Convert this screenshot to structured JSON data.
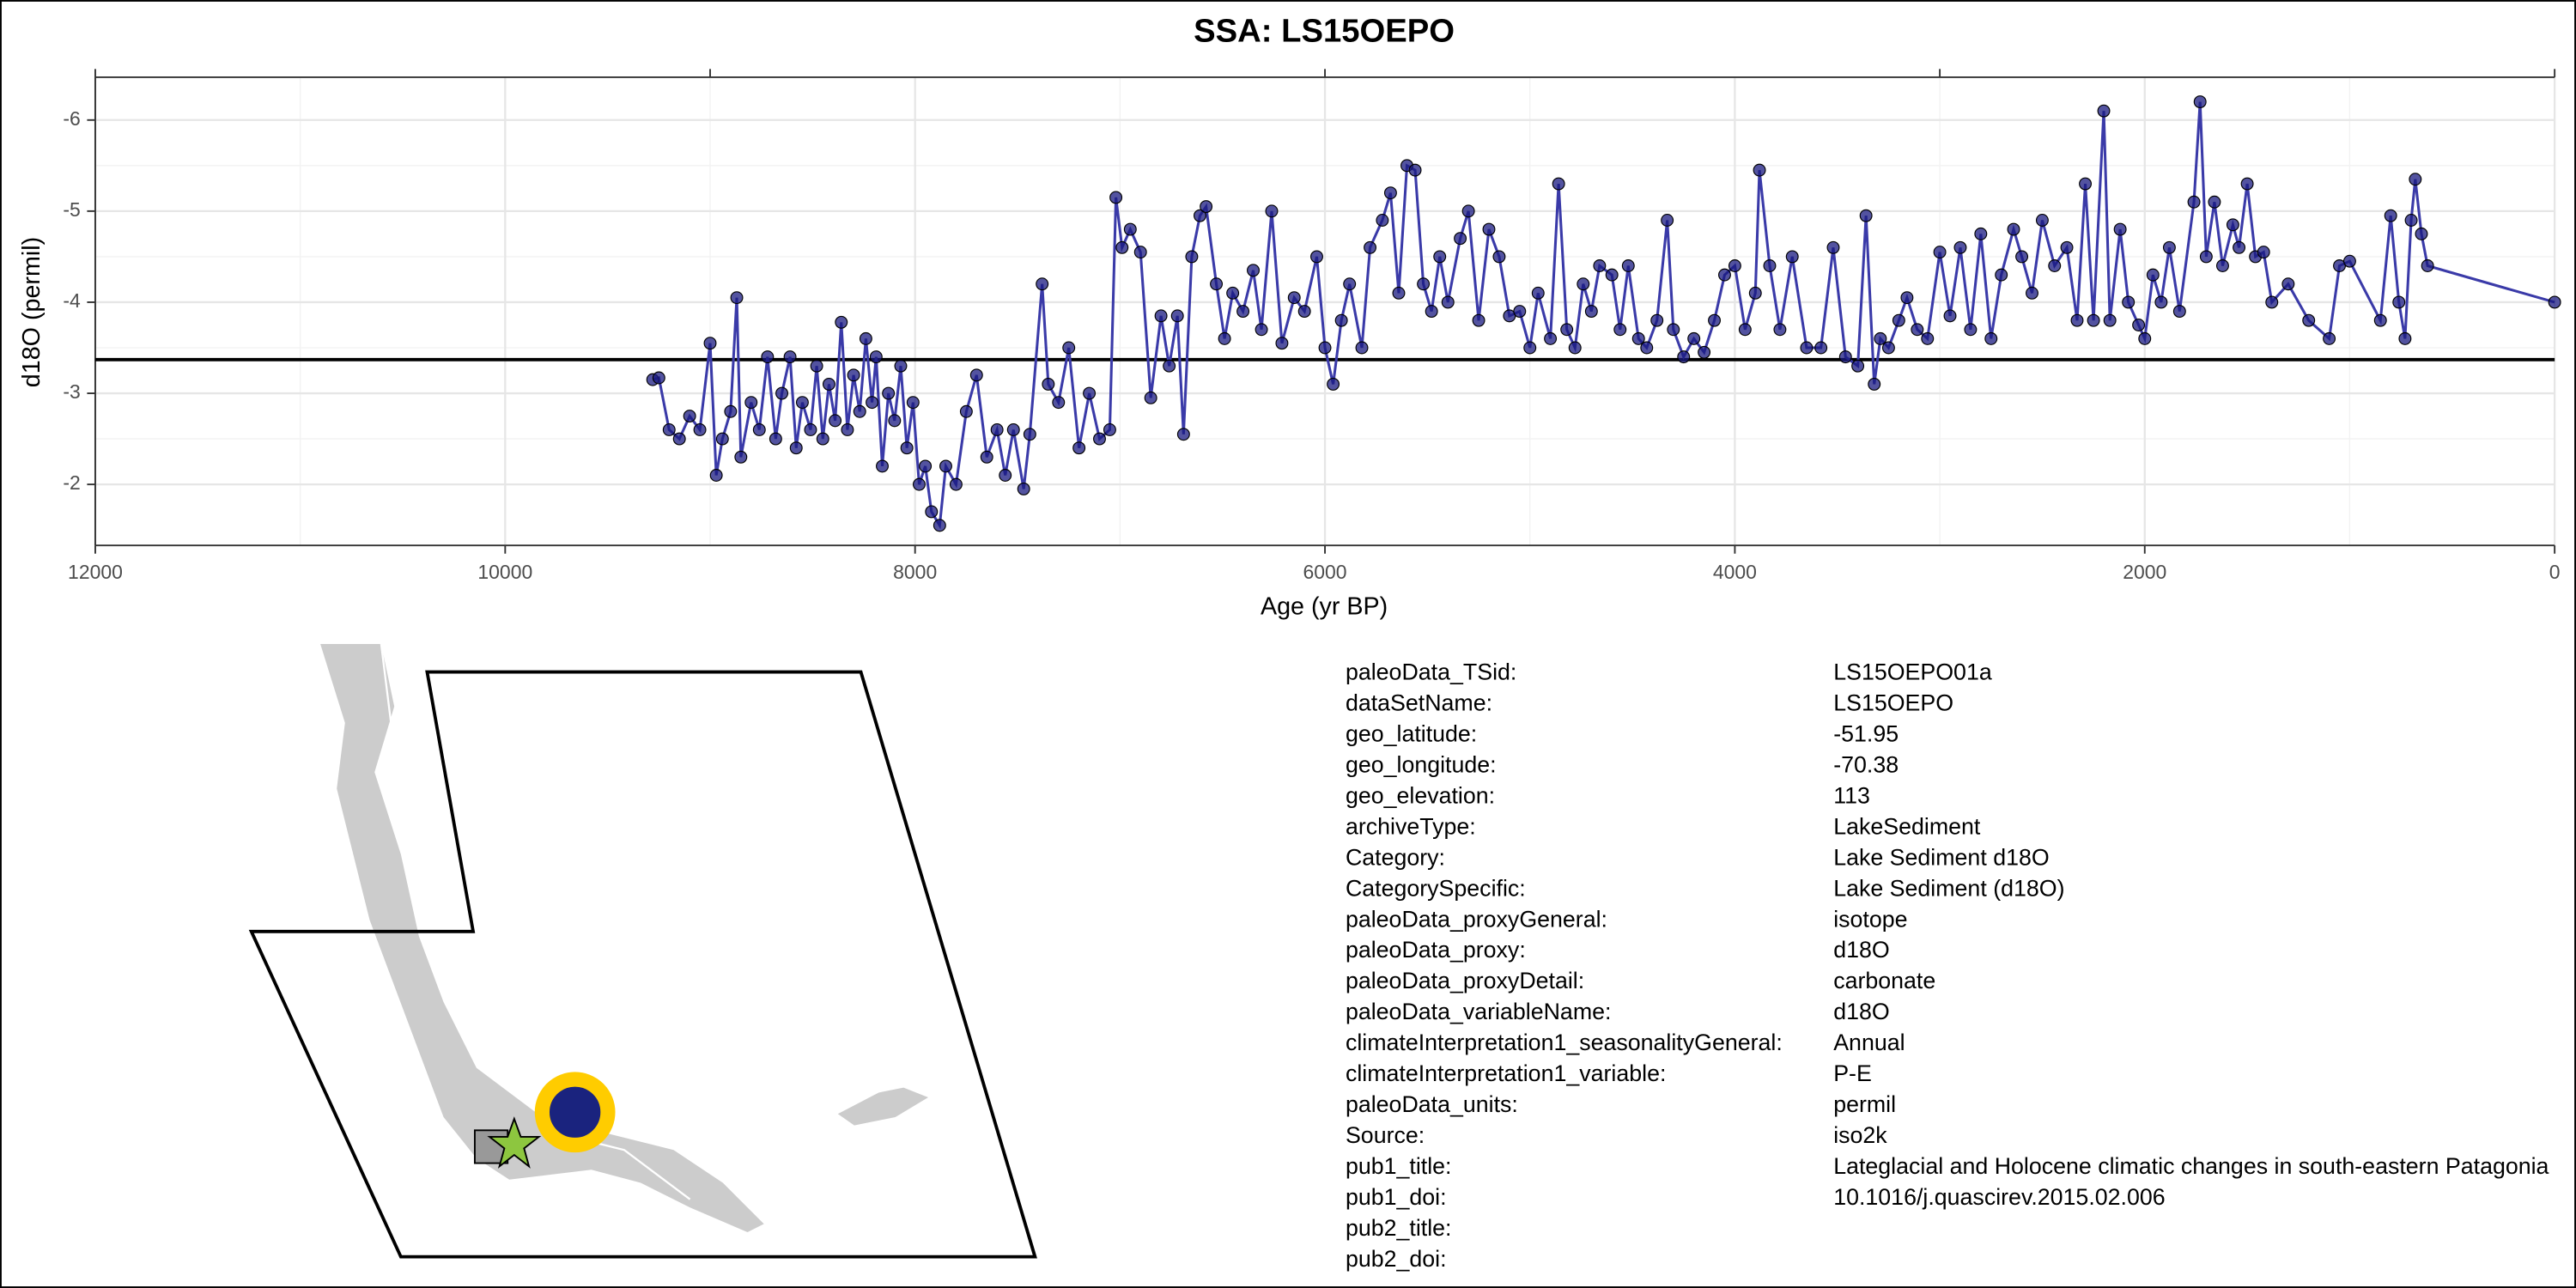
{
  "chart_data": {
    "type": "line",
    "title": "SSA: LS15OEPO",
    "x_label": "Age (yr BP)",
    "y_label": "d18O (permil)",
    "xlim": [
      12000,
      0
    ],
    "ylim": [
      -1.33,
      -6.47
    ],
    "xticks": [
      12000,
      10000,
      8000,
      6000,
      4000,
      2000,
      0
    ],
    "yticks": [
      -6,
      -5,
      -4,
      -3,
      -2
    ],
    "x2ticks": [
      12000,
      9000,
      6000,
      3000,
      0
    ],
    "grid": true,
    "minor_grid": true,
    "hline": -3.37,
    "hline_color": "#000000",
    "x": [
      9280,
      9250,
      9200,
      9150,
      9100,
      9050,
      9000,
      8970,
      8940,
      8900,
      8870,
      8850,
      8800,
      8760,
      8720,
      8680,
      8650,
      8610,
      8580,
      8550,
      8510,
      8480,
      8450,
      8420,
      8390,
      8360,
      8330,
      8300,
      8270,
      8240,
      8210,
      8190,
      8160,
      8130,
      8100,
      8070,
      8040,
      8010,
      7980,
      7950,
      7920,
      7880,
      7850,
      7800,
      7750,
      7700,
      7650,
      7600,
      7560,
      7520,
      7470,
      7440,
      7380,
      7350,
      7300,
      7250,
      7200,
      7150,
      7100,
      7050,
      7020,
      6990,
      6950,
      6900,
      6850,
      6800,
      6760,
      6720,
      6690,
      6650,
      6610,
      6580,
      6530,
      6490,
      6450,
      6400,
      6350,
      6310,
      6260,
      6210,
      6150,
      6100,
      6040,
      6000,
      5960,
      5920,
      5880,
      5820,
      5780,
      5720,
      5680,
      5640,
      5600,
      5560,
      5520,
      5480,
      5440,
      5400,
      5340,
      5300,
      5250,
      5200,
      5150,
      5100,
      5050,
      5000,
      4960,
      4900,
      4860,
      4820,
      4780,
      4740,
      4700,
      4660,
      4600,
      4560,
      4520,
      4470,
      4430,
      4380,
      4330,
      4300,
      4250,
      4200,
      4150,
      4100,
      4050,
      4000,
      3950,
      3900,
      3880,
      3830,
      3780,
      3720,
      3650,
      3580,
      3520,
      3460,
      3400,
      3360,
      3320,
      3290,
      3250,
      3200,
      3160,
      3110,
      3060,
      3000,
      2950,
      2900,
      2850,
      2800,
      2750,
      2700,
      2640,
      2600,
      2550,
      2500,
      2440,
      2380,
      2330,
      2290,
      2250,
      2200,
      2170,
      2120,
      2080,
      2030,
      2000,
      1960,
      1920,
      1880,
      1830,
      1760,
      1730,
      1700,
      1660,
      1620,
      1570,
      1540,
      1500,
      1460,
      1420,
      1380,
      1300,
      1200,
      1100,
      1050,
      1000,
      850,
      800,
      760,
      730,
      700,
      680,
      650,
      620,
      0
    ],
    "series": [
      {
        "color": "#3a3aa8",
        "point_color": "#1a1a80",
        "values": [
          -3.15,
          -3.17,
          -2.6,
          -2.5,
          -2.75,
          -2.6,
          -3.55,
          -2.1,
          -2.5,
          -2.8,
          -4.05,
          -2.3,
          -2.9,
          -2.6,
          -3.4,
          -2.5,
          -3.0,
          -3.4,
          -2.4,
          -2.9,
          -2.6,
          -3.3,
          -2.5,
          -3.1,
          -2.7,
          -3.78,
          -2.6,
          -3.2,
          -2.8,
          -3.6,
          -2.9,
          -3.4,
          -2.2,
          -3.0,
          -2.7,
          -3.3,
          -2.4,
          -2.9,
          -2.0,
          -2.2,
          -1.7,
          -1.55,
          -2.2,
          -2.0,
          -2.8,
          -3.2,
          -2.3,
          -2.6,
          -2.1,
          -2.6,
          -1.95,
          -2.55,
          -4.2,
          -3.1,
          -2.9,
          -3.5,
          -2.4,
          -3.0,
          -2.5,
          -2.6,
          -5.15,
          -4.6,
          -4.8,
          -4.55,
          -2.95,
          -3.85,
          -3.3,
          -3.85,
          -2.55,
          -4.5,
          -4.95,
          -5.05,
          -4.2,
          -3.6,
          -4.1,
          -3.9,
          -4.35,
          -3.7,
          -5.0,
          -3.55,
          -4.05,
          -3.9,
          -4.5,
          -3.5,
          -3.1,
          -3.8,
          -4.2,
          -3.5,
          -4.6,
          -4.9,
          -5.2,
          -4.1,
          -5.5,
          -5.45,
          -4.2,
          -3.9,
          -4.5,
          -4.0,
          -4.7,
          -5.0,
          -3.8,
          -4.8,
          -4.5,
          -3.85,
          -3.9,
          -3.5,
          -4.1,
          -3.6,
          -5.3,
          -3.7,
          -3.5,
          -4.2,
          -3.9,
          -4.4,
          -4.3,
          -3.7,
          -4.4,
          -3.6,
          -3.5,
          -3.8,
          -4.9,
          -3.7,
          -3.4,
          -3.6,
          -3.45,
          -3.8,
          -4.3,
          -4.4,
          -3.7,
          -4.1,
          -5.45,
          -4.4,
          -3.7,
          -4.5,
          -3.5,
          -3.5,
          -4.6,
          -3.4,
          -3.3,
          -4.95,
          -3.1,
          -3.6,
          -3.5,
          -3.8,
          -4.05,
          -3.7,
          -3.6,
          -4.55,
          -3.85,
          -4.6,
          -3.7,
          -4.75,
          -3.6,
          -4.3,
          -4.8,
          -4.5,
          -4.1,
          -4.9,
          -4.4,
          -4.6,
          -3.8,
          -5.3,
          -3.8,
          -6.1,
          -3.8,
          -4.8,
          -4.0,
          -3.75,
          -3.6,
          -4.3,
          -4.0,
          -4.6,
          -3.9,
          -5.1,
          -6.2,
          -4.5,
          -5.1,
          -4.4,
          -4.85,
          -4.6,
          -5.3,
          -4.5,
          -4.55,
          -4.0,
          -4.2,
          -3.8,
          -3.6,
          -4.4,
          -4.45,
          -3.8,
          -4.95,
          -4.0,
          -3.6,
          -4.9,
          -5.35,
          -4.75,
          -4.4,
          -4.0
        ]
      }
    ]
  },
  "metadata": {
    "rows": [
      [
        "paleoData_TSid:",
        "LS15OEPO01a"
      ],
      [
        "dataSetName:",
        "LS15OEPO"
      ],
      [
        "geo_latitude:",
        "-51.95"
      ],
      [
        "geo_longitude:",
        "-70.38"
      ],
      [
        "geo_elevation:",
        "113"
      ],
      [
        "archiveType:",
        "LakeSediment"
      ],
      [
        "Category:",
        "Lake Sediment d18O"
      ],
      [
        "CategorySpecific:",
        "Lake Sediment (d18O)"
      ],
      [
        "paleoData_proxyGeneral:",
        "isotope"
      ],
      [
        "paleoData_proxy:",
        "d18O"
      ],
      [
        "paleoData_proxyDetail:",
        "carbonate"
      ],
      [
        "paleoData_variableName:",
        "d18O"
      ],
      [
        "climateInterpretation1_seasonalityGeneral:",
        "Annual"
      ],
      [
        "climateInterpretation1_variable:",
        "P-E"
      ],
      [
        "paleoData_units:",
        "permil"
      ],
      [
        "Source:",
        "iso2k"
      ],
      [
        "pub1_title:",
        "Lateglacial and Holocene climatic changes in south-eastern Patagonia"
      ],
      [
        "pub1_doi:",
        "10.1016/j.quascirev.2015.02.006"
      ],
      [
        "pub2_title:",
        ""
      ],
      [
        "pub2_doi:",
        ""
      ]
    ]
  }
}
